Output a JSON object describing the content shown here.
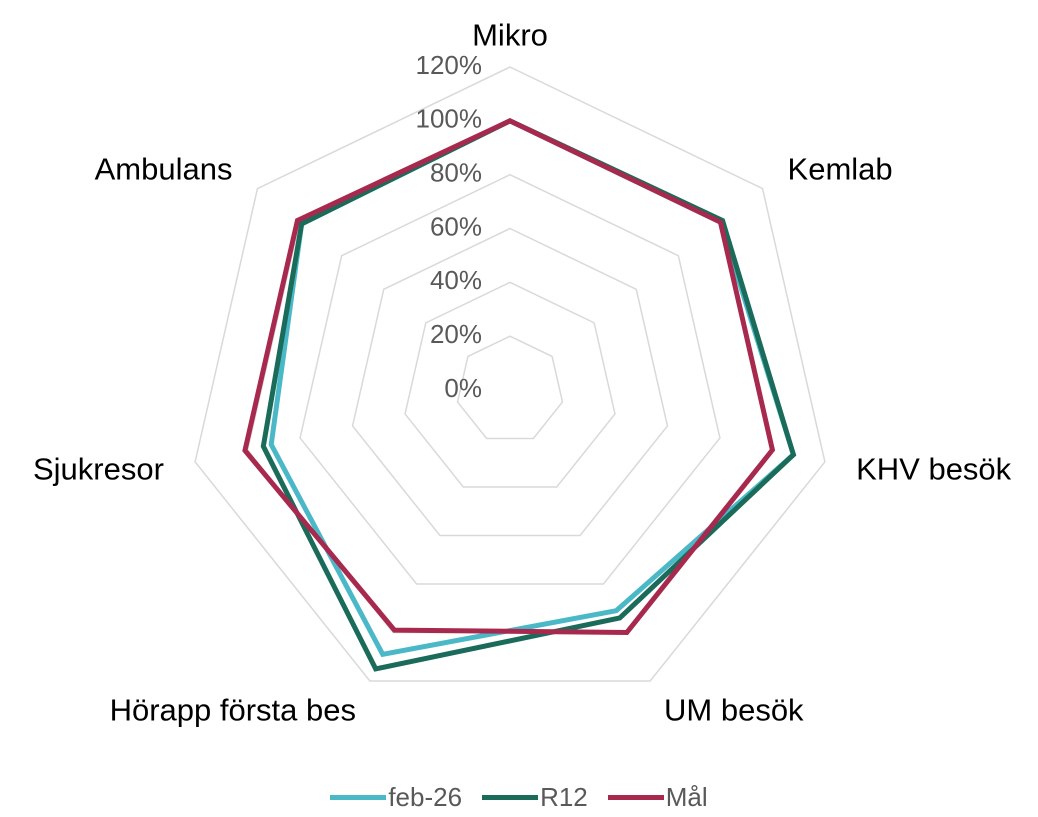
{
  "chart_data": {
    "type": "radar",
    "categories": [
      "Mikro",
      "Kemlab",
      "KHV besök",
      "UM besök",
      "Hörapp första bes",
      "Sjukresor",
      "Ambulans"
    ],
    "series": [
      {
        "name": "feb-26",
        "color": "#4bb8c8",
        "values": [
          100,
          100,
          108,
          91,
          109,
          91,
          99
        ]
      },
      {
        "name": "R12",
        "color": "#1a6b5a",
        "values": [
          100,
          101,
          108,
          94,
          115,
          94,
          99
        ]
      },
      {
        "name": "Mål",
        "color": "#a8294e",
        "values": [
          100,
          100,
          100,
          100,
          99,
          101,
          101
        ]
      }
    ],
    "ylim": [
      0,
      120
    ],
    "yticks": [
      {
        "value": 0,
        "label": "0%"
      },
      {
        "value": 20,
        "label": "20%"
      },
      {
        "value": 40,
        "label": "40%"
      },
      {
        "value": 60,
        "label": "60%"
      },
      {
        "value": 80,
        "label": "80%"
      },
      {
        "value": 100,
        "label": "100%"
      },
      {
        "value": 120,
        "label": "120%"
      }
    ],
    "grid": true,
    "legend": "bottom"
  }
}
